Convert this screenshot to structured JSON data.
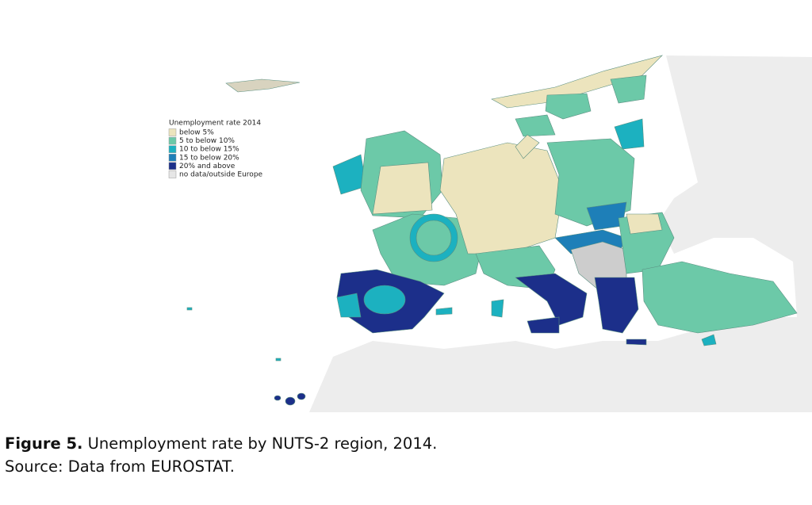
{
  "legend": {
    "title": "Unemployment rate 2014",
    "items": [
      {
        "label": "below 5%",
        "color": "#ece4bd"
      },
      {
        "label": "5 to below 10%",
        "color": "#6cc9a8"
      },
      {
        "label": "10 to below 15%",
        "color": "#1cb1c0"
      },
      {
        "label": "15 to below 20%",
        "color": "#1e7fb8"
      },
      {
        "label": "20% and above",
        "color": "#1c2f8a"
      },
      {
        "label": "no data/outside Europe",
        "color": "#e6e6e6"
      }
    ]
  },
  "caption": {
    "label": "Figure 5.",
    "text": "Unemployment rate by NUTS-2 region, 2014."
  },
  "source": "Source: Data from EUROSTAT."
}
